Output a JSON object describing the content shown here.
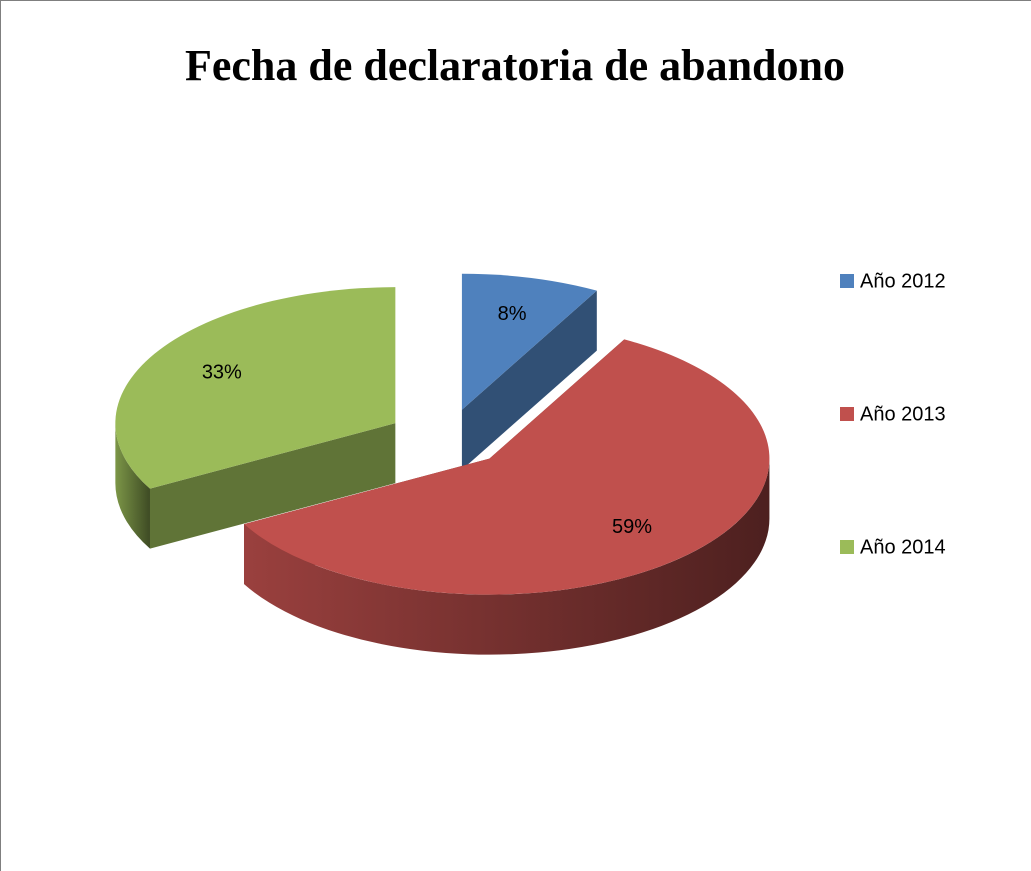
{
  "chart_data": {
    "type": "pie",
    "title": "Fecha de declaratoria de abandono",
    "categories": [
      "Año 2012",
      "Año 2013",
      "Año 2014"
    ],
    "values": [
      8,
      59,
      33
    ],
    "value_labels": [
      "8%",
      "59%",
      "33%"
    ],
    "colors": [
      "#4f81bd",
      "#c0504d",
      "#9bbb59"
    ],
    "legend": "right"
  }
}
